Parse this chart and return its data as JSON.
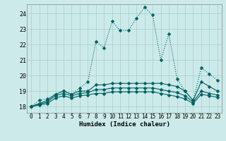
{
  "xlabel": "Humidex (Indice chaleur)",
  "background_color": "#cceaea",
  "grid_color": "#aacccc",
  "line_color": "#006060",
  "xlim": [
    -0.5,
    23.5
  ],
  "ylim": [
    17.6,
    24.6
  ],
  "yticks": [
    18,
    19,
    20,
    21,
    22,
    23,
    24
  ],
  "xticks": [
    0,
    1,
    2,
    3,
    4,
    5,
    6,
    7,
    8,
    9,
    10,
    11,
    12,
    13,
    14,
    15,
    16,
    17,
    18,
    19,
    20,
    21,
    22,
    23
  ],
  "series": [
    {
      "x": [
        0,
        1,
        2,
        3,
        4,
        5,
        6,
        7,
        8,
        9,
        10,
        11,
        12,
        13,
        14,
        15,
        16,
        17,
        18,
        19,
        20,
        21,
        22,
        23
      ],
      "y": [
        18.0,
        18.4,
        18.5,
        18.8,
        19.0,
        18.8,
        19.2,
        19.6,
        22.2,
        21.8,
        23.5,
        22.9,
        22.9,
        23.7,
        24.4,
        23.9,
        21.0,
        22.7,
        19.8,
        19.0,
        18.4,
        20.5,
        20.1,
        19.7
      ],
      "style": "dotted",
      "marker": "D",
      "markersize": 2.5
    },
    {
      "x": [
        0,
        1,
        2,
        3,
        4,
        5,
        6,
        7,
        8,
        9,
        10,
        11,
        12,
        13,
        14,
        15,
        16,
        17,
        18,
        19,
        20,
        21,
        22,
        23
      ],
      "y": [
        18.0,
        18.2,
        18.4,
        18.8,
        19.0,
        18.8,
        19.0,
        19.0,
        19.4,
        19.4,
        19.5,
        19.5,
        19.5,
        19.5,
        19.5,
        19.5,
        19.5,
        19.4,
        19.3,
        19.0,
        18.4,
        19.6,
        19.3,
        19.0
      ],
      "style": "solid",
      "marker": "D",
      "markersize": 2.5
    },
    {
      "x": [
        0,
        1,
        2,
        3,
        4,
        5,
        6,
        7,
        8,
        9,
        10,
        11,
        12,
        13,
        14,
        15,
        16,
        17,
        18,
        19,
        20,
        21,
        22,
        23
      ],
      "y": [
        18.0,
        18.15,
        18.3,
        18.7,
        18.85,
        18.7,
        18.85,
        18.9,
        19.1,
        19.1,
        19.2,
        19.2,
        19.2,
        19.2,
        19.2,
        19.2,
        19.1,
        19.0,
        18.9,
        18.7,
        18.3,
        19.0,
        18.85,
        18.75
      ],
      "style": "solid",
      "marker": "D",
      "markersize": 2.5
    },
    {
      "x": [
        0,
        1,
        2,
        3,
        4,
        5,
        6,
        7,
        8,
        9,
        10,
        11,
        12,
        13,
        14,
        15,
        16,
        17,
        18,
        19,
        20,
        21,
        22,
        23
      ],
      "y": [
        18.0,
        18.1,
        18.2,
        18.55,
        18.7,
        18.55,
        18.7,
        18.75,
        18.85,
        18.85,
        18.95,
        18.95,
        18.95,
        18.95,
        18.95,
        18.95,
        18.85,
        18.75,
        18.65,
        18.5,
        18.2,
        18.8,
        18.7,
        18.6
      ],
      "style": "solid",
      "marker": "D",
      "markersize": 2.5
    }
  ]
}
